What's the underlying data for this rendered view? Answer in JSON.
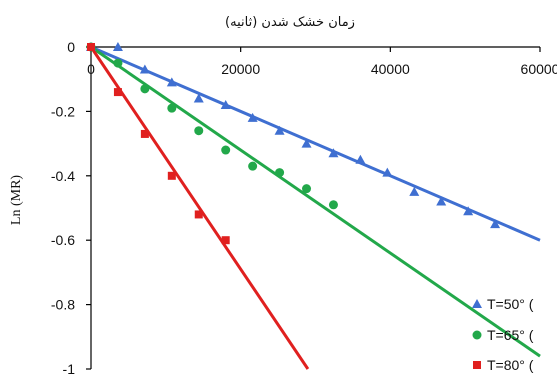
{
  "chart_data": {
    "type": "scatter",
    "title": "زمان خشک شدن (ثانیه)",
    "xlabel": "زمان خشک شدن (ثانیه)",
    "ylabel": "Ln (MR)",
    "xlim": [
      0,
      60000
    ],
    "ylim": [
      -1,
      0
    ],
    "x_ticks": [
      0,
      20000,
      40000,
      60000
    ],
    "x_tick_labels": [
      "0",
      "20000",
      "40000",
      "60000"
    ],
    "y_ticks": [
      0,
      -0.2,
      -0.4,
      -0.6,
      -0.8,
      -1
    ],
    "y_tick_labels": [
      "0",
      "-0.2",
      "-0.4",
      "-0.6",
      "-0.8",
      "-1"
    ],
    "x_axis_position": "top",
    "grid": false,
    "legend_position": "bottom-right",
    "series": [
      {
        "name": "T=50° (",
        "color": "#3f6fd1",
        "marker": "triangle",
        "trend_slope": -1e-05,
        "x": [
          3600,
          7200,
          10800,
          14400,
          18000,
          21600,
          25200,
          28800,
          32400,
          36000,
          39600,
          43200,
          46800,
          50400,
          54000
        ],
        "y": [
          0.0,
          -0.07,
          -0.11,
          -0.16,
          -0.18,
          -0.22,
          -0.26,
          -0.3,
          -0.33,
          -0.35,
          -0.39,
          -0.45,
          -0.48,
          -0.51,
          -0.55
        ]
      },
      {
        "name": "T=65° (",
        "color": "#22a84a",
        "marker": "circle",
        "trend_slope": -1.6e-05,
        "x": [
          3600,
          7200,
          10800,
          14400,
          18000,
          21600,
          25200,
          28800,
          32400
        ],
        "y": [
          -0.05,
          -0.13,
          -0.19,
          -0.26,
          -0.32,
          -0.37,
          -0.39,
          -0.44,
          -0.49
        ]
      },
      {
        "name": "T=80° (",
        "color": "#e0201f",
        "marker": "square",
        "trend_slope": -3.45e-05,
        "x": [
          3600,
          7200,
          10800,
          14400,
          18000
        ],
        "y": [
          -0.14,
          -0.27,
          -0.4,
          -0.52,
          -0.6
        ]
      }
    ]
  }
}
